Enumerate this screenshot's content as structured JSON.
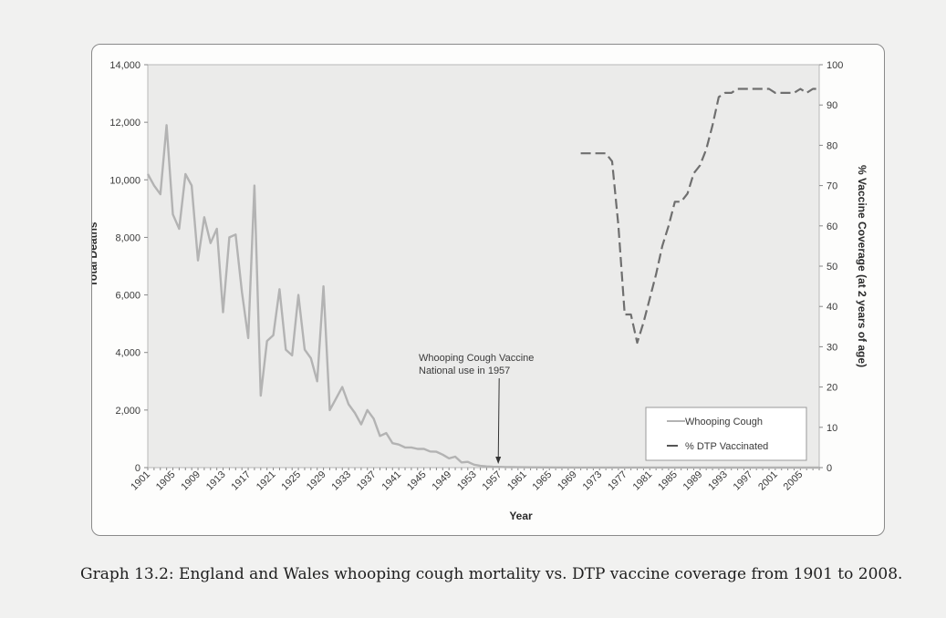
{
  "caption": "Graph 13.2: England and Wales whooping cough mortality vs. DTP vaccine coverage from 1901 to 2008.",
  "chart_data": {
    "type": "line",
    "xlabel": "Year",
    "ylabel_left": "Total Deaths",
    "ylabel_right": "% Vaccine Coverage (at 2 years of age)",
    "xlim": [
      1901,
      2008
    ],
    "ylim_left": [
      0,
      14000
    ],
    "ylim_right": [
      0,
      100
    ],
    "y_ticks_left": [
      "0",
      "2,000",
      "4,000",
      "6,000",
      "8,000",
      "10,000",
      "12,000",
      "14,000"
    ],
    "y_ticks_right": [
      "0",
      "10",
      "20",
      "30",
      "40",
      "50",
      "60",
      "70",
      "80",
      "90",
      "100"
    ],
    "x_tick_labels": [
      "1901",
      "1905",
      "1909",
      "1913",
      "1917",
      "1921",
      "1925",
      "1929",
      "1933",
      "1937",
      "1941",
      "1945",
      "1949",
      "1953",
      "1957",
      "1961",
      "1965",
      "1969",
      "1973",
      "1977",
      "1981",
      "1985",
      "1989",
      "1993",
      "1997",
      "2001",
      "2005"
    ],
    "grid": false,
    "legend_position": "bottom-right",
    "annotation": {
      "lines": [
        "Whooping Cough Vaccine",
        "National use  in 1957"
      ],
      "x": 1957
    },
    "series": [
      {
        "name": "Whooping Cough",
        "axis": "left",
        "style": "solid",
        "color": "#b3b3b3",
        "x": [
          1901,
          1902,
          1903,
          1904,
          1905,
          1906,
          1907,
          1908,
          1909,
          1910,
          1911,
          1912,
          1913,
          1914,
          1915,
          1916,
          1917,
          1918,
          1919,
          1920,
          1921,
          1922,
          1923,
          1924,
          1925,
          1926,
          1927,
          1928,
          1929,
          1930,
          1931,
          1932,
          1933,
          1934,
          1935,
          1936,
          1937,
          1938,
          1939,
          1940,
          1941,
          1942,
          1943,
          1944,
          1945,
          1946,
          1947,
          1948,
          1949,
          1950,
          1951,
          1952,
          1953,
          1954,
          1955,
          1956,
          1957,
          1958,
          1959,
          1960,
          1962,
          1965,
          1970,
          1975,
          1980,
          1990,
          2000,
          2008
        ],
        "values": [
          10200,
          9800,
          9500,
          11900,
          8800,
          8300,
          10200,
          9800,
          7200,
          8700,
          7800,
          8300,
          5400,
          8000,
          8100,
          6100,
          4500,
          9800,
          2500,
          4400,
          4600,
          6200,
          4100,
          3900,
          6000,
          4100,
          3800,
          3000,
          6300,
          2000,
          2400,
          2800,
          2200,
          1900,
          1500,
          2000,
          1700,
          1100,
          1200,
          850,
          800,
          700,
          700,
          650,
          650,
          560,
          550,
          450,
          320,
          380,
          180,
          200,
          100,
          60,
          40,
          30,
          25,
          20,
          15,
          12,
          8,
          5,
          3,
          2,
          2,
          1,
          0,
          0
        ]
      },
      {
        "name": "% DTP Vaccinated",
        "axis": "right",
        "style": "dashed",
        "color": "#6f6f6f",
        "x": [
          1970,
          1971,
          1972,
          1973,
          1974,
          1975,
          1976,
          1977,
          1978,
          1979,
          1980,
          1981,
          1982,
          1983,
          1984,
          1985,
          1986,
          1987,
          1988,
          1989,
          1990,
          1991,
          1992,
          1993,
          1994,
          1995,
          1996,
          1997,
          1998,
          1999,
          2000,
          2001,
          2002,
          2003,
          2004,
          2005,
          2006,
          2007,
          2008
        ],
        "values": [
          78,
          78,
          78,
          78,
          78,
          76,
          60,
          38,
          38,
          31,
          36,
          42,
          48,
          55,
          60,
          66,
          66,
          68,
          73,
          75,
          79,
          85,
          92,
          93,
          93,
          94,
          94,
          94,
          94,
          94,
          94,
          93,
          93,
          93,
          93,
          94,
          93,
          94,
          94
        ]
      }
    ]
  }
}
